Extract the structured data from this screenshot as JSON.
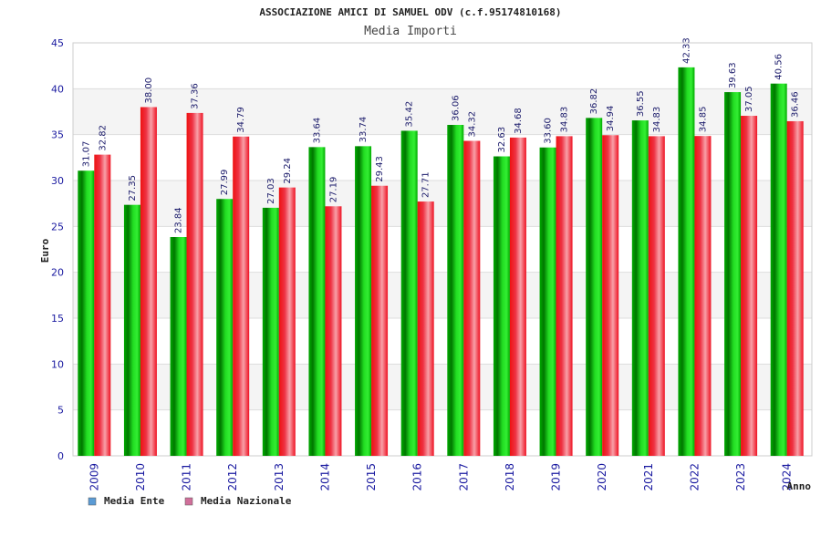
{
  "chart_data": {
    "type": "bar",
    "title": "ASSOCIAZIONE AMICI DI SAMUEL ODV (c.f.95174810168)",
    "subtitle": "Media Importi",
    "xlabel": "Anno",
    "ylabel": "Euro",
    "ylim": [
      0,
      45
    ],
    "yticks": [
      "0",
      "5",
      "10",
      "15",
      "20",
      "25",
      "30",
      "35",
      "40",
      "45"
    ],
    "categories": [
      "2009",
      "2010",
      "2011",
      "2012",
      "2013",
      "2014",
      "2015",
      "2016",
      "2017",
      "2018",
      "2019",
      "2020",
      "2021",
      "2022",
      "2023",
      "2024"
    ],
    "series": [
      {
        "name": "Media Ente",
        "color": "#00bb00",
        "legend_color": "#5b9bd5",
        "values": [
          31.07,
          27.35,
          23.84,
          27.99,
          27.03,
          33.64,
          33.74,
          35.42,
          36.06,
          32.63,
          33.6,
          36.82,
          36.55,
          42.33,
          39.63,
          40.56
        ],
        "labels": [
          "31.07",
          "27.35",
          "23.84",
          "27.99",
          "27.03",
          "33.64",
          "33.74",
          "35.42",
          "36.06",
          "32.63",
          "33.60",
          "36.82",
          "36.55",
          "42.33",
          "39.63",
          "40.56"
        ]
      },
      {
        "name": "Media Nazionale",
        "color": "#ee1122",
        "legend_color": "#d06f9a",
        "values": [
          32.82,
          38.0,
          37.36,
          34.79,
          29.24,
          27.19,
          29.43,
          27.71,
          34.32,
          34.68,
          34.83,
          34.94,
          34.83,
          34.85,
          37.05,
          36.46
        ],
        "labels": [
          "32.82",
          "38.00",
          "37.36",
          "34.79",
          "29.24",
          "27.19",
          "29.43",
          "27.71",
          "34.32",
          "34.68",
          "34.83",
          "34.94",
          "34.83",
          "34.85",
          "37.05",
          "36.46"
        ]
      }
    ],
    "grid": true,
    "legend": "bottom-left"
  }
}
